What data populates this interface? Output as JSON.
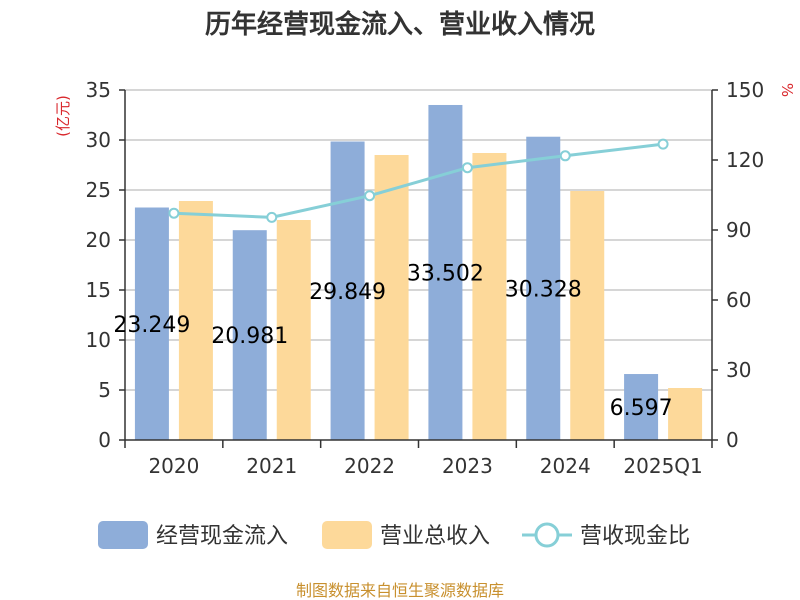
{
  "chart_data": {
    "type": "bar",
    "title": "历年经营现金流入、营业收入情况",
    "categories": [
      "2020",
      "2021",
      "2022",
      "2023",
      "2024",
      "2025Q1"
    ],
    "y_left": {
      "label": "(亿元)",
      "ylim": [
        0,
        35
      ],
      "ticks": [
        0,
        5,
        10,
        15,
        20,
        25,
        30,
        35
      ]
    },
    "y_right": {
      "label": "%",
      "ylim": [
        0,
        150
      ],
      "ticks": [
        0,
        30,
        60,
        90,
        120,
        150
      ]
    },
    "series": [
      {
        "name": "经营现金流入",
        "type": "bar",
        "axis": "left",
        "color": "#8eadd9",
        "values": [
          23.249,
          20.981,
          29.849,
          33.502,
          30.328,
          6.597
        ],
        "labels": [
          "23.249",
          "20.981",
          "29.849",
          "33.502",
          "30.328",
          "6.597"
        ]
      },
      {
        "name": "营业总收入",
        "type": "bar",
        "axis": "left",
        "color": "#fdd99a",
        "values": [
          23.9,
          22.0,
          28.5,
          28.7,
          24.9,
          5.2
        ]
      },
      {
        "name": "营收现金比",
        "type": "line",
        "axis": "right",
        "color": "#86cfd7",
        "values": [
          97.2,
          95.4,
          104.7,
          116.7,
          121.8,
          126.8
        ]
      }
    ],
    "grid": true,
    "legend_position": "bottom"
  },
  "source": "制图数据来自恒生聚源数据库",
  "colors": {
    "left_unit": "#d9262b",
    "right_unit": "#d9262b",
    "source": "#c8902e",
    "grid": "#c8c8c8",
    "axis": "#333333"
  }
}
